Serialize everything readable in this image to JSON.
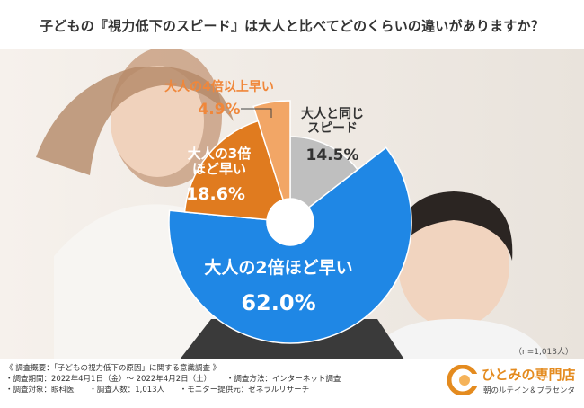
{
  "title": "子どもの『視力低下のスピード』は大人と比べてどのくらいの違いがありますか？",
  "sample_note": "（n=1,013人）",
  "chart_data": {
    "type": "pie",
    "title": "子どもの『視力低下のスピード』は大人と比べてどのくらいの違いがありますか？",
    "slices": [
      {
        "label_lines": [
          "大人と同じ",
          "スピード"
        ],
        "value": 14.5,
        "value_label": "14.5%",
        "color": "#bfbfbf"
      },
      {
        "label_lines": [
          "大人の2倍ほど早い"
        ],
        "value": 62.0,
        "value_label": "62.0%",
        "color": "#1f87e5"
      },
      {
        "label_lines": [
          "大人の3倍",
          "ほど早い"
        ],
        "value": 18.6,
        "value_label": "18.6%",
        "color": "#e07b1f"
      },
      {
        "label_lines": [
          "大人の4倍以上早い"
        ],
        "value": 4.9,
        "value_label": "4.9%",
        "color": "#f2a666"
      }
    ],
    "donut": true,
    "start": "12 o'clock, clockwise"
  },
  "footer": {
    "summary": "《 調査概要：「子どもの視力低下の原因」に関する意識調査 》",
    "period": "・調査期間：2022年4月1日（金）～ 2022年4月2日（土）",
    "method": "・調査方法：インターネット調査",
    "target": "・調査対象：眼科医",
    "count": "・調査人数：1,013人",
    "provider": "・モニター提供元：ゼネラルリサーチ"
  },
  "logo": {
    "name": "ひとみの専門店",
    "subtitle": "朝のルテイン＆プラセンタ",
    "icon": "eye-circle-icon",
    "color": "#e48b1f"
  }
}
